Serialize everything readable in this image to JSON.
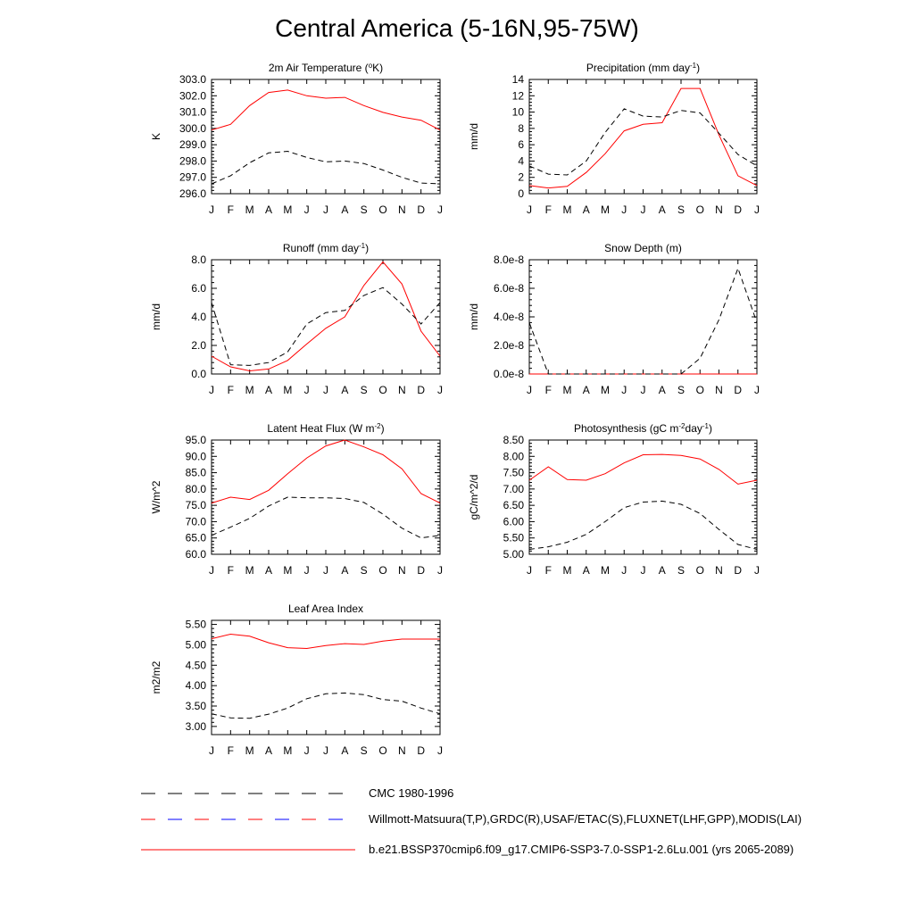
{
  "page": {
    "title": "Central America (5-16N,95-75W)"
  },
  "colors": {
    "model": "#ff0000",
    "obs": "#000000",
    "obs_dash_mixed": [
      "#ff0000",
      "#0000ff"
    ]
  },
  "legend": {
    "items": [
      {
        "label": "CMC 1980-1996",
        "style": "dashed-black"
      },
      {
        "label": "Willmott-Matsuura(T,P),GRDC(R),USAF/ETAC(S),FLUXNET(LHF,GPP),MODIS(LAI)",
        "style": "dashed-colored"
      },
      {
        "label": "b.e21.BSSP370cmip6.f09_g17.CMIP6-SSP3-7.0-SSP1-2.6Lu.001 (yrs 2065-2089)",
        "style": "solid-red"
      }
    ]
  },
  "chart_data": [
    {
      "type": "line",
      "title": "2m Air Temperature (oK)",
      "title_parts": [
        "2m Air Temperature (",
        "o",
        "K)"
      ],
      "ylabel": "K",
      "x": [
        "J",
        "F",
        "M",
        "A",
        "M",
        "J",
        "J",
        "A",
        "S",
        "O",
        "N",
        "D",
        "J"
      ],
      "ylim": [
        296.0,
        303.0
      ],
      "yticks": [
        296.0,
        297.0,
        298.0,
        299.0,
        300.0,
        301.0,
        302.0,
        303.0
      ],
      "ytick_labels": [
        "296.0",
        "297.0",
        "298.0",
        "299.0",
        "300.0",
        "301.0",
        "302.0",
        "303.0"
      ],
      "series": [
        {
          "style": "model",
          "values": [
            299.9,
            300.25,
            301.4,
            302.2,
            302.35,
            302.0,
            301.85,
            301.9,
            301.4,
            300.98,
            300.7,
            300.5,
            299.9
          ]
        },
        {
          "style": "obs",
          "values": [
            296.6,
            297.1,
            297.9,
            298.5,
            298.6,
            298.22,
            297.95,
            298.0,
            297.85,
            297.45,
            297.0,
            296.65,
            296.6
          ]
        }
      ]
    },
    {
      "type": "line",
      "title": "Precipitation (mm day-1)",
      "title_parts": [
        "Precipitation (mm day",
        "-1",
        ")"
      ],
      "ylabel": "mm/d",
      "x": [
        "J",
        "F",
        "M",
        "A",
        "M",
        "J",
        "J",
        "A",
        "S",
        "O",
        "N",
        "D",
        "J"
      ],
      "ylim": [
        0,
        14
      ],
      "yticks": [
        0,
        2,
        4,
        6,
        8,
        10,
        12,
        14
      ],
      "ytick_labels": [
        "0",
        "2",
        "4",
        "6",
        "8",
        "10",
        "12",
        "14"
      ],
      "series": [
        {
          "style": "model",
          "values": [
            1.0,
            0.7,
            0.9,
            2.6,
            4.9,
            7.7,
            8.5,
            8.7,
            12.9,
            12.9,
            7.2,
            2.2,
            1.0
          ]
        },
        {
          "style": "obs",
          "values": [
            3.4,
            2.4,
            2.3,
            4.0,
            7.5,
            10.4,
            9.5,
            9.4,
            10.2,
            9.9,
            7.4,
            4.8,
            3.4
          ]
        }
      ]
    },
    {
      "type": "line",
      "title": "Runoff (mm day-1)",
      "title_parts": [
        "Runoff (mm day",
        "-1",
        ")"
      ],
      "ylabel": "mm/d",
      "x": [
        "J",
        "F",
        "M",
        "A",
        "M",
        "J",
        "J",
        "A",
        "S",
        "O",
        "N",
        "D",
        "J"
      ],
      "ylim": [
        0.0,
        8.0
      ],
      "yticks": [
        0.0,
        2.0,
        4.0,
        6.0,
        8.0
      ],
      "ytick_labels": [
        "0.0",
        "2.0",
        "4.0",
        "6.0",
        "8.0"
      ],
      "series": [
        {
          "style": "model",
          "values": [
            1.25,
            0.5,
            0.22,
            0.35,
            0.95,
            2.1,
            3.2,
            4.0,
            6.2,
            7.85,
            6.3,
            3.0,
            1.25
          ]
        },
        {
          "style": "obs",
          "values": [
            5.0,
            0.65,
            0.6,
            0.8,
            1.55,
            3.5,
            4.3,
            4.45,
            5.5,
            6.05,
            4.9,
            3.5,
            5.0
          ]
        }
      ]
    },
    {
      "type": "line",
      "title": "Snow Depth (m)",
      "title_parts": [
        "Snow Depth (m)",
        "",
        ""
      ],
      "ylabel": "mm/d",
      "x": [
        "J",
        "F",
        "M",
        "A",
        "M",
        "J",
        "J",
        "A",
        "S",
        "O",
        "N",
        "D",
        "J"
      ],
      "ylim": [
        0,
        8e-08
      ],
      "yticks": [
        0,
        2e-08,
        4e-08,
        6e-08,
        8e-08
      ],
      "ytick_labels": [
        "0.0e-8",
        "2.0e-8",
        "4.0e-8",
        "6.0e-8",
        "8.0e-8"
      ],
      "series": [
        {
          "style": "model",
          "values": [
            0,
            0,
            0,
            0,
            0,
            0,
            0,
            0,
            0,
            0,
            0,
            0,
            0
          ]
        },
        {
          "style": "obs",
          "values": [
            3.6e-08,
            0,
            0,
            0,
            0,
            0,
            0,
            0,
            0,
            1.1e-08,
            3.8e-08,
            7.4e-08,
            3.6e-08
          ]
        }
      ]
    },
    {
      "type": "line",
      "title": "Latent Heat Flux (W m-2)",
      "title_parts": [
        "Latent Heat Flux (W m",
        "-2",
        ")"
      ],
      "ylabel": "W/m^2",
      "x": [
        "J",
        "F",
        "M",
        "A",
        "M",
        "J",
        "J",
        "A",
        "S",
        "O",
        "N",
        "D",
        "J"
      ],
      "ylim": [
        60.0,
        95.0
      ],
      "yticks": [
        60.0,
        65.0,
        70.0,
        75.0,
        80.0,
        85.0,
        90.0,
        95.0
      ],
      "ytick_labels": [
        "60.0",
        "65.0",
        "70.0",
        "75.0",
        "80.0",
        "85.0",
        "90.0",
        "95.0"
      ],
      "series": [
        {
          "style": "model",
          "values": [
            75.7,
            77.5,
            76.8,
            79.6,
            84.7,
            89.5,
            93.2,
            95.0,
            92.9,
            90.5,
            86.2,
            78.6,
            75.7
          ]
        },
        {
          "style": "obs",
          "values": [
            65.8,
            68.3,
            71.0,
            74.8,
            77.5,
            77.3,
            77.3,
            77.1,
            75.9,
            72.3,
            68.0,
            65.0,
            65.8
          ]
        }
      ]
    },
    {
      "type": "line",
      "title": "Photosynthesis (gC m-2day-1)",
      "title_parts": [
        "Photosynthesis (gC m",
        "-2",
        "day",
        "-1",
        ")"
      ],
      "ylabel": "gC/m^2/d",
      "x": [
        "J",
        "F",
        "M",
        "A",
        "M",
        "J",
        "J",
        "A",
        "S",
        "O",
        "N",
        "D",
        "J"
      ],
      "ylim": [
        5.0,
        8.5
      ],
      "yticks": [
        5.0,
        5.5,
        6.0,
        6.5,
        7.0,
        7.5,
        8.0,
        8.5
      ],
      "ytick_labels": [
        "5.00",
        "5.50",
        "6.00",
        "6.50",
        "7.00",
        "7.50",
        "8.00",
        "8.50"
      ],
      "series": [
        {
          "style": "model",
          "values": [
            7.27,
            7.68,
            7.29,
            7.27,
            7.47,
            7.8,
            8.05,
            8.06,
            8.03,
            7.92,
            7.6,
            7.15,
            7.27
          ]
        },
        {
          "style": "obs",
          "values": [
            5.15,
            5.23,
            5.37,
            5.61,
            6.0,
            6.43,
            6.6,
            6.63,
            6.53,
            6.25,
            5.76,
            5.3,
            5.15
          ]
        }
      ]
    },
    {
      "type": "line",
      "title": "Leaf Area Index",
      "title_parts": [
        "Leaf Area Index",
        "",
        ""
      ],
      "ylabel": "m2/m2",
      "x": [
        "J",
        "F",
        "M",
        "A",
        "M",
        "J",
        "J",
        "A",
        "S",
        "O",
        "N",
        "D",
        "J"
      ],
      "ylim": [
        2.8,
        5.6
      ],
      "yticks": [
        3.0,
        3.5,
        4.0,
        4.5,
        5.0,
        5.5
      ],
      "ytick_labels": [
        "3.00",
        "3.50",
        "4.00",
        "4.50",
        "5.00",
        "5.50"
      ],
      "series": [
        {
          "style": "model",
          "values": [
            5.15,
            5.26,
            5.21,
            5.05,
            4.93,
            4.91,
            4.98,
            5.03,
            5.01,
            5.09,
            5.14,
            5.14,
            5.14
          ]
        },
        {
          "style": "obs",
          "values": [
            3.31,
            3.21,
            3.2,
            3.3,
            3.45,
            3.68,
            3.8,
            3.82,
            3.78,
            3.66,
            3.62,
            3.45,
            3.31
          ]
        }
      ]
    }
  ]
}
